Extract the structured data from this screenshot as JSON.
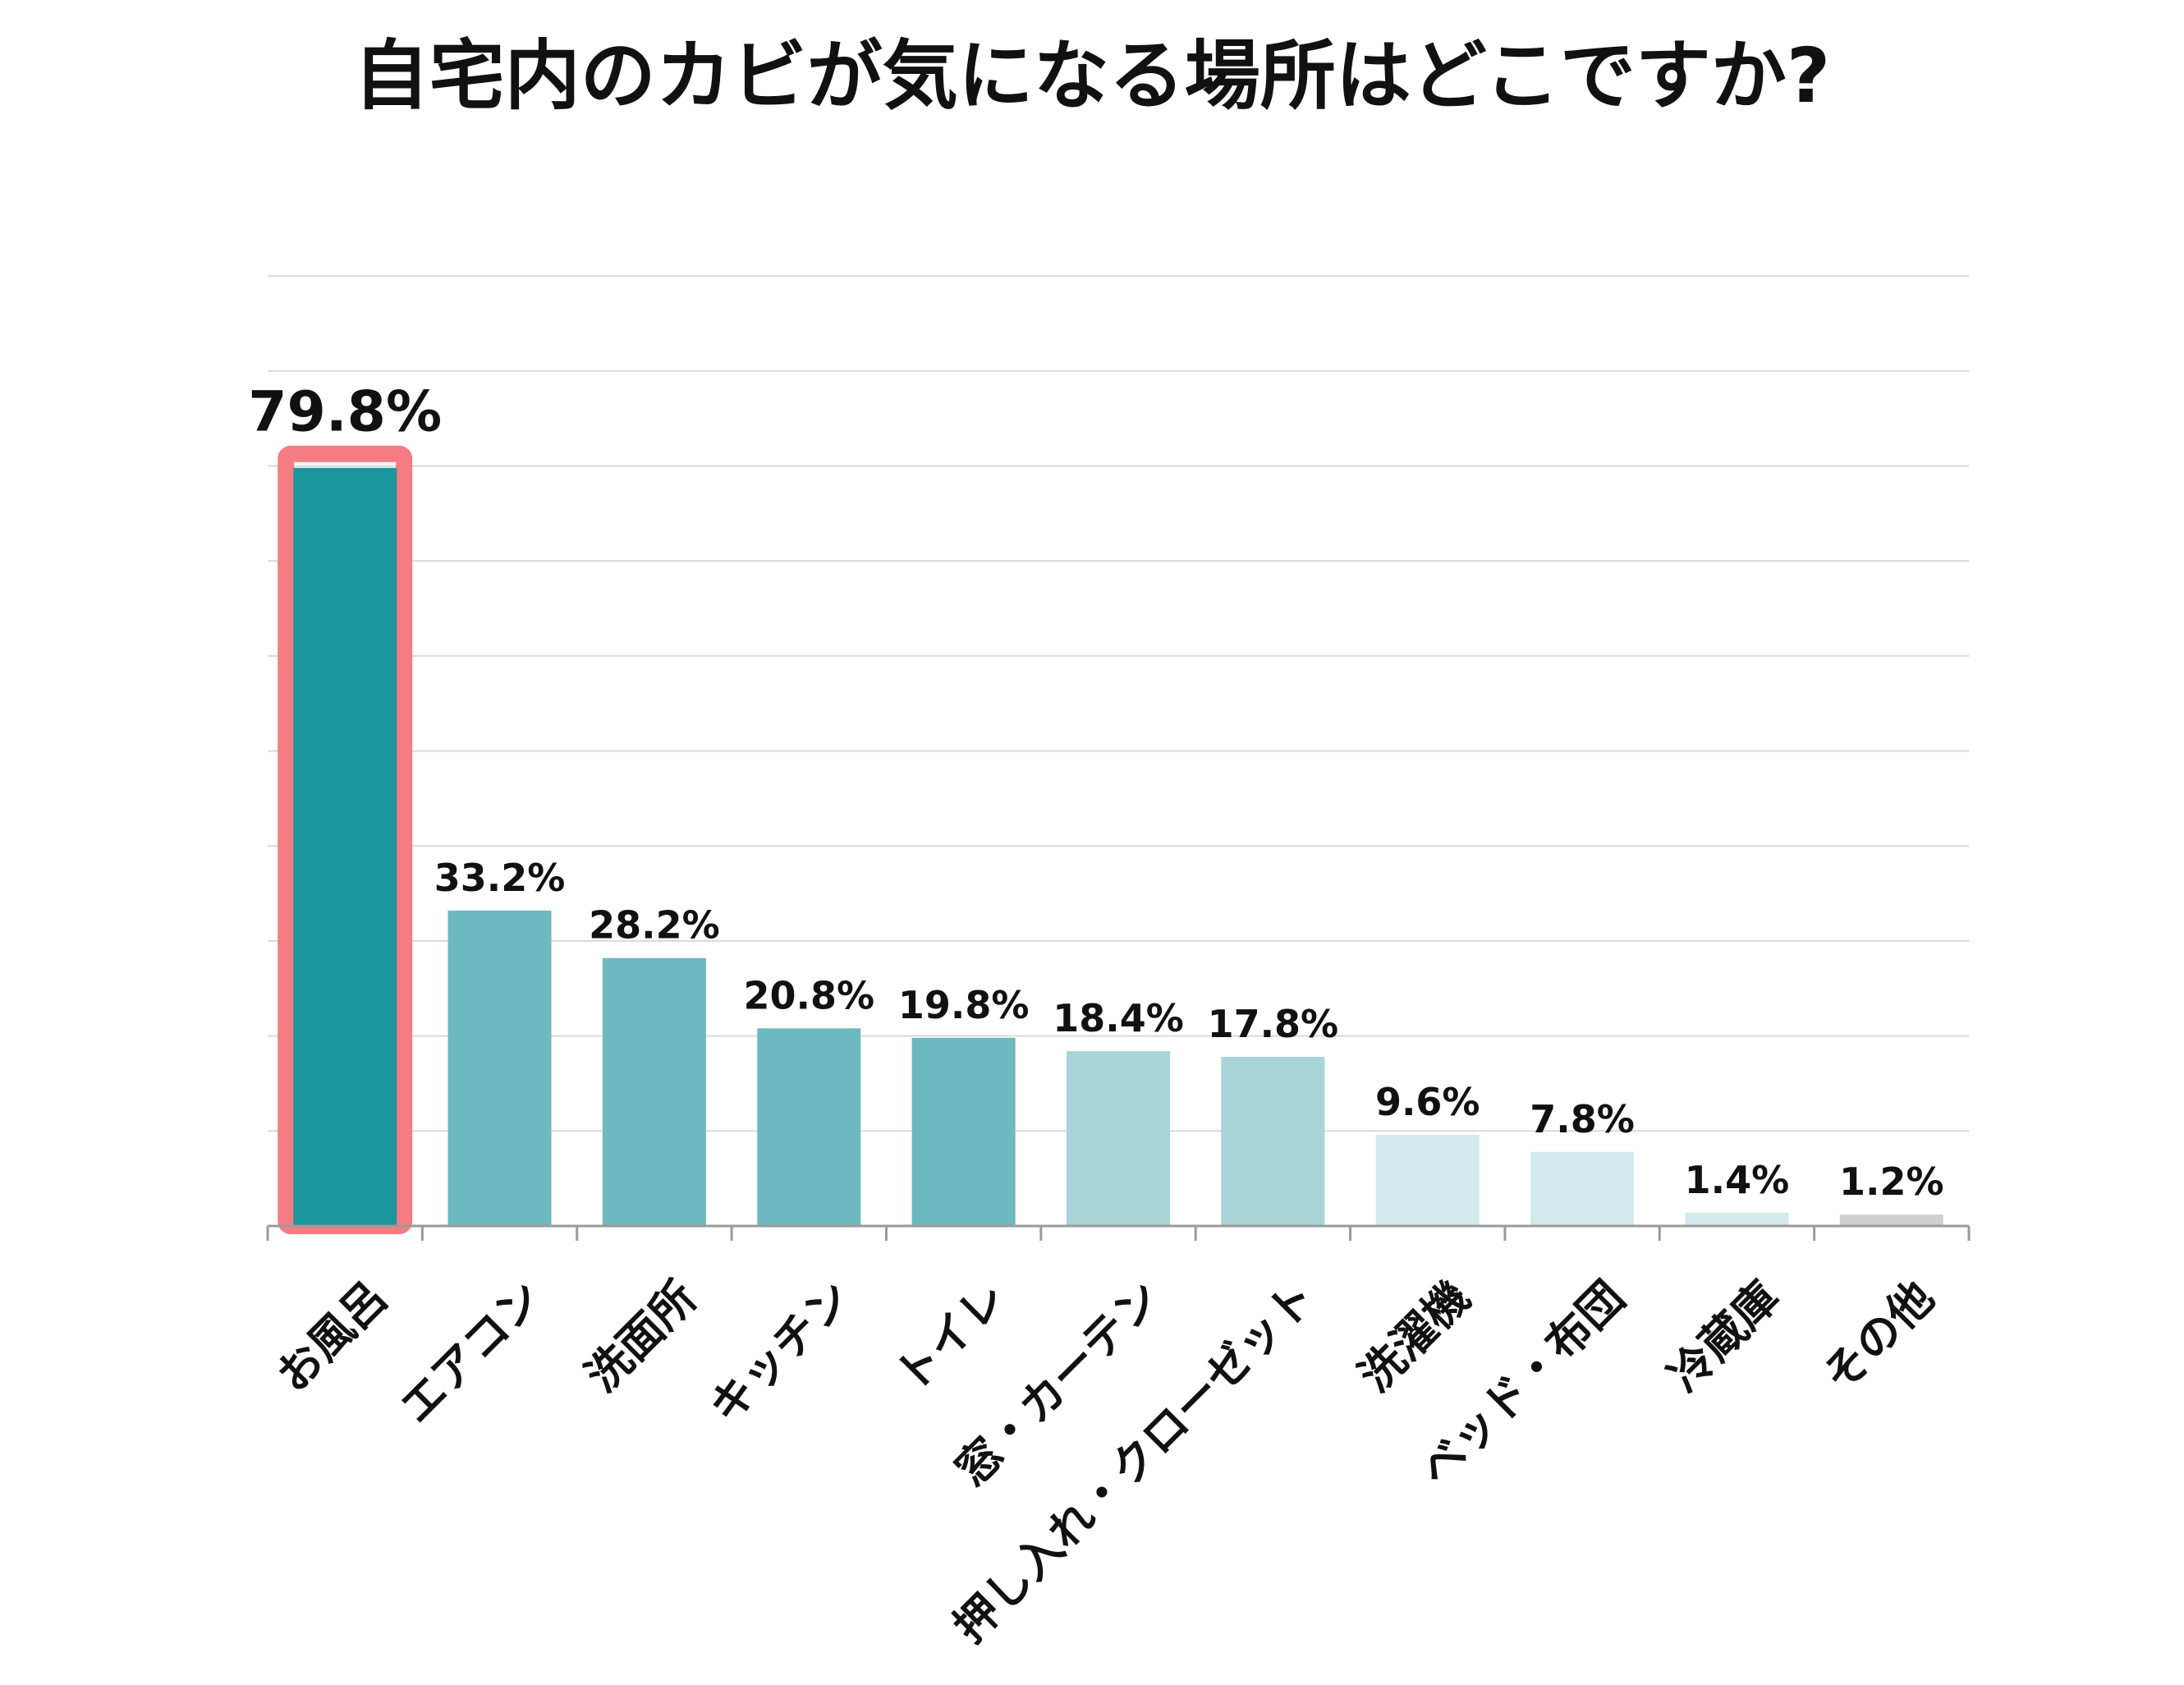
{
  "chart_data": {
    "type": "bar",
    "title": "自宅内のカビが気になる場所はどこですか?",
    "categories": [
      "お風呂",
      "エアコン",
      "洗面所",
      "キッチン",
      "トイレ",
      "窓・カーテン",
      "押し入れ・クローゼット",
      "洗濯機",
      "ベッド・布団",
      "冷蔵庫",
      "その他"
    ],
    "values": [
      79.8,
      33.2,
      28.2,
      20.8,
      19.8,
      18.4,
      17.8,
      9.6,
      7.8,
      1.4,
      1.2
    ],
    "value_labels": [
      "79.8%",
      "33.2%",
      "28.2%",
      "20.8%",
      "19.8%",
      "18.4%",
      "17.8%",
      "9.6%",
      "7.8%",
      "1.4%",
      "1.2%"
    ],
    "xlabel": "",
    "ylabel": "",
    "ylim": [
      0,
      100
    ],
    "grid": true,
    "legend": "none",
    "bar_colors": [
      "#1d969e",
      "#6cb9bf",
      "#6cb9bf",
      "#6cb9bf",
      "#6cb9bf",
      "#a6d4d8",
      "#a6d4d8",
      "#d2eaec",
      "#d2eaec",
      "#d2eaec",
      "#cfcfcf"
    ],
    "highlight": {
      "category": "お風呂",
      "border_color": "#f47c82",
      "label_color": "#1d969e"
    }
  }
}
